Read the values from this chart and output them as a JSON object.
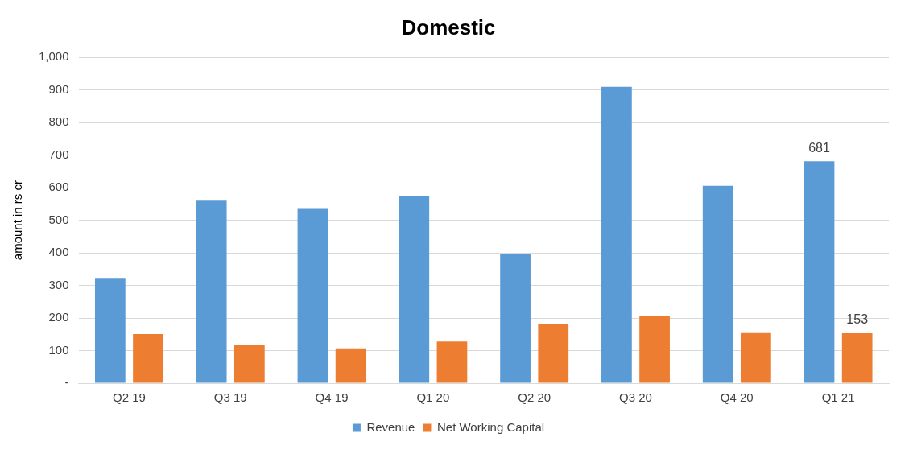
{
  "chart_data": {
    "type": "bar",
    "title": "Domestic",
    "ylabel": "amount in rs cr",
    "categories": [
      "Q2 19",
      "Q3 19",
      "Q4 19",
      "Q1 20",
      "Q2 20",
      "Q3 20",
      "Q4 20",
      "Q1 21"
    ],
    "series": [
      {
        "name": "Revenue",
        "color": "#5b9bd5",
        "values": [
          323,
          560,
          535,
          574,
          398,
          910,
          606,
          681
        ],
        "value_labels": [
          null,
          null,
          null,
          null,
          null,
          null,
          null,
          "681"
        ]
      },
      {
        "name": "Net Working Capital",
        "color": "#ed7d31",
        "values": [
          151,
          118,
          107,
          128,
          183,
          206,
          154,
          153
        ],
        "value_labels": [
          null,
          null,
          null,
          null,
          null,
          null,
          null,
          "153"
        ]
      }
    ],
    "ylim": [
      0,
      1000
    ],
    "yticks": [
      {
        "value": 0,
        "label": "-"
      },
      100,
      200,
      300,
      400,
      500,
      600,
      700,
      800,
      900,
      {
        "value": 1000,
        "label": "1,000"
      }
    ],
    "grid": "y",
    "legend": "bottom"
  }
}
